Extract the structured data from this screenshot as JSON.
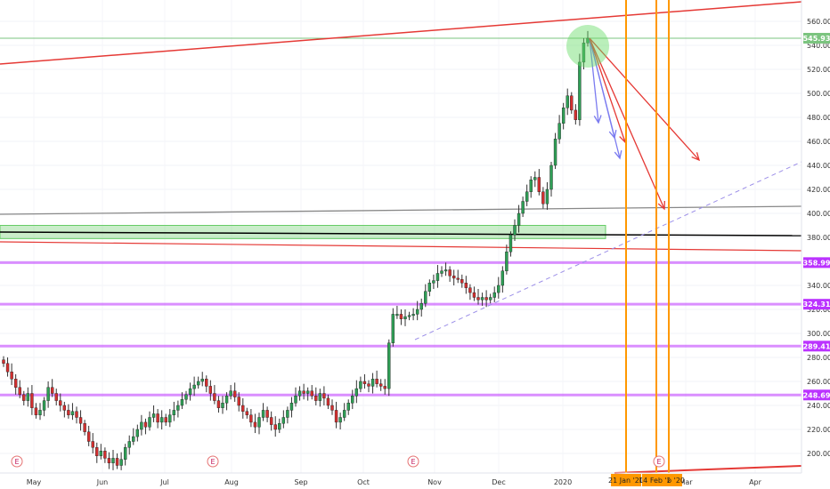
{
  "chart_data": {
    "type": "candlestick",
    "title": "",
    "price_axis": {
      "ylim": [
        185,
        572
      ],
      "ticks": [
        200,
        220,
        240,
        260,
        280,
        300,
        320,
        340,
        360,
        380,
        400,
        420,
        440,
        460,
        480,
        500,
        520,
        540,
        560
      ]
    },
    "time_axis": {
      "labels": [
        "May",
        "Jun",
        "Jul",
        "Aug",
        "Sep",
        "Oct",
        "Nov",
        "Dec",
        "2020",
        "Mar",
        "Apr"
      ]
    },
    "last_price_tag": {
      "value": 545.93,
      "label": "545.93",
      "color": "#7bc47f"
    },
    "horizontal_levels": [
      {
        "value": 358.99,
        "label": "358.99",
        "color": "#bb33ff"
      },
      {
        "value": 324.31,
        "label": "324.31",
        "color": "#bb33ff"
      },
      {
        "value": 289.41,
        "label": "289.41",
        "color": "#bb33ff"
      },
      {
        "value": 248.69,
        "label": "248.69",
        "color": "#bb33ff"
      }
    ],
    "time_markers": [
      {
        "label": "21 Jan '20",
        "color": "#ff9800"
      },
      {
        "label": "14 Feb '20",
        "color": "#ff9800"
      },
      {
        "label": "b '20",
        "color": "#ff9800"
      }
    ],
    "earnings_markers": [
      "E",
      "E",
      "E",
      "E"
    ],
    "closes": [
      275,
      268,
      262,
      255,
      249,
      244,
      250,
      238,
      232,
      236,
      244,
      255,
      250,
      244,
      240,
      236,
      232,
      235,
      230,
      225,
      218,
      210,
      205,
      198,
      202,
      196,
      192,
      196,
      190,
      195,
      205,
      210,
      214,
      220,
      226,
      222,
      230,
      233,
      226,
      230,
      226,
      232,
      236,
      240,
      245,
      249,
      254,
      257,
      260,
      262,
      256,
      250,
      244,
      238,
      242,
      248,
      252,
      247,
      240,
      235,
      232,
      226,
      222,
      230,
      236,
      230,
      224,
      220,
      225,
      230,
      236,
      242,
      248,
      252,
      250,
      252,
      248,
      244,
      250,
      246,
      240,
      236,
      226,
      230,
      236,
      242,
      248,
      254,
      260,
      258,
      256,
      262,
      258,
      256,
      254,
      292,
      316,
      316,
      312,
      314,
      315,
      316,
      320,
      325,
      335,
      342,
      344,
      350,
      352,
      353,
      348,
      346,
      345,
      342,
      338,
      334,
      330,
      328,
      330,
      328,
      330,
      334,
      340,
      352,
      368,
      382,
      390,
      400,
      410,
      418,
      428,
      430,
      418,
      408,
      420,
      440,
      462,
      475,
      488,
      498,
      486,
      478,
      526,
      542,
      545.93
    ],
    "market": "price chart with trendlines and projections"
  }
}
